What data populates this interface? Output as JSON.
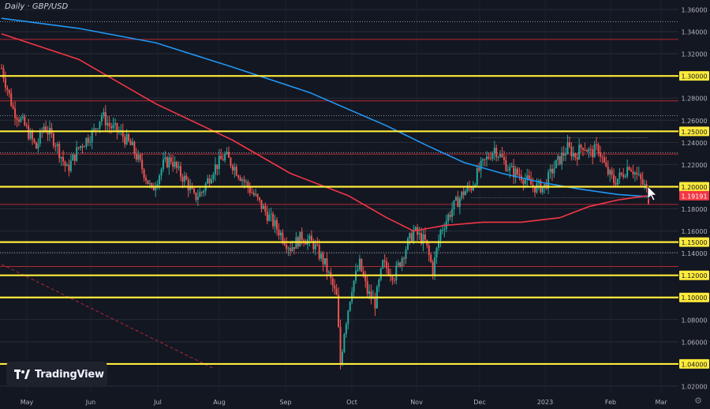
{
  "chart_title": "Daily · GBP/USD",
  "brand": "TradingView",
  "settings_icon": "gear-icon",
  "colors": {
    "background": "#131722",
    "grid": "#2a2e39",
    "up_candle": "#26a69a",
    "down_candle": "#ef5350",
    "sma_long": "#2196f3",
    "sma_short": "#f23645",
    "key_level": "#ffeb3b",
    "thin_level": "#d1d4dc",
    "red_level": "#b22833",
    "price_label_bg": "#f23645",
    "axis_text": "#b2b5be"
  },
  "chart_data": {
    "type": "candlestick",
    "symbol": "GBP/USD",
    "timeframe": "Daily",
    "ylim": [
      1.01,
      1.365
    ],
    "y_ticks": [
      "1.36000",
      "1.34000",
      "1.32000",
      "1.30000",
      "1.28000",
      "1.26000",
      "1.25000",
      "1.24000",
      "1.22000",
      "1.20000",
      "1.19191",
      "1.18000",
      "1.16000",
      "1.15000",
      "1.14000",
      "1.12000",
      "1.10000",
      "1.08000",
      "1.06000",
      "1.04000",
      "1.02000"
    ],
    "x_ticks": [
      "May",
      "Jun",
      "Jul",
      "Aug",
      "Sep",
      "Oct",
      "Nov",
      "Dec",
      "2023",
      "Feb",
      "Mar"
    ],
    "last_price": 1.19191,
    "key_levels": [
      1.3,
      1.25,
      1.2,
      1.15,
      1.12,
      1.1,
      1.04
    ],
    "thin_levels": [
      1.349,
      1.264,
      1.2305,
      1.1405
    ],
    "red_levels": [
      1.333,
      1.2775,
      1.2295,
      1.184,
      1.128
    ],
    "close_path": [
      [
        0,
        1.307
      ],
      [
        6,
        1.27
      ],
      [
        12,
        1.255
      ],
      [
        18,
        1.235
      ],
      [
        22,
        1.255
      ],
      [
        28,
        1.24
      ],
      [
        34,
        1.215
      ],
      [
        40,
        1.235
      ],
      [
        48,
        1.25
      ],
      [
        52,
        1.265
      ],
      [
        56,
        1.255
      ],
      [
        62,
        1.248
      ],
      [
        68,
        1.235
      ],
      [
        74,
        1.213
      ],
      [
        78,
        1.196
      ],
      [
        84,
        1.22
      ],
      [
        88,
        1.225
      ],
      [
        92,
        1.213
      ],
      [
        96,
        1.205
      ],
      [
        100,
        1.19
      ],
      [
        104,
        1.195
      ],
      [
        110,
        1.216
      ],
      [
        116,
        1.228
      ],
      [
        120,
        1.22
      ],
      [
        126,
        1.205
      ],
      [
        132,
        1.19
      ],
      [
        138,
        1.175
      ],
      [
        144,
        1.16
      ],
      [
        150,
        1.145
      ],
      [
        156,
        1.155
      ],
      [
        162,
        1.148
      ],
      [
        168,
        1.13
      ],
      [
        174,
        1.1
      ],
      [
        176,
        1.04
      ],
      [
        178,
        1.07
      ],
      [
        182,
        1.11
      ],
      [
        186,
        1.13
      ],
      [
        190,
        1.105
      ],
      [
        194,
        1.095
      ],
      [
        198,
        1.13
      ],
      [
        204,
        1.12
      ],
      [
        210,
        1.145
      ],
      [
        214,
        1.16
      ],
      [
        220,
        1.15
      ],
      [
        224,
        1.125
      ],
      [
        228,
        1.16
      ],
      [
        234,
        1.18
      ],
      [
        240,
        1.195
      ],
      [
        244,
        1.2
      ],
      [
        248,
        1.215
      ],
      [
        252,
        1.225
      ],
      [
        256,
        1.235
      ],
      [
        260,
        1.225
      ],
      [
        264,
        1.215
      ],
      [
        270,
        1.21
      ],
      [
        276,
        1.2
      ],
      [
        282,
        1.2
      ],
      [
        286,
        1.215
      ],
      [
        290,
        1.225
      ],
      [
        294,
        1.235
      ],
      [
        298,
        1.228
      ],
      [
        302,
        1.238
      ],
      [
        306,
        1.23
      ],
      [
        310,
        1.235
      ],
      [
        314,
        1.215
      ],
      [
        318,
        1.205
      ],
      [
        322,
        1.21
      ],
      [
        326,
        1.22
      ],
      [
        330,
        1.21
      ],
      [
        334,
        1.2
      ],
      [
        336,
        1.19
      ]
    ],
    "series": [
      {
        "name": "SMA long (blue)",
        "points": [
          [
            0,
            1.352
          ],
          [
            40,
            1.343
          ],
          [
            80,
            1.33
          ],
          [
            120,
            1.308
          ],
          [
            160,
            1.285
          ],
          [
            200,
            1.255
          ],
          [
            220,
            1.238
          ],
          [
            240,
            1.222
          ],
          [
            260,
            1.212
          ],
          [
            280,
            1.204
          ],
          [
            300,
            1.198
          ],
          [
            320,
            1.193
          ],
          [
            336,
            1.191
          ]
        ]
      },
      {
        "name": "SMA short (red)",
        "points": [
          [
            0,
            1.338
          ],
          [
            40,
            1.315
          ],
          [
            80,
            1.275
          ],
          [
            120,
            1.242
          ],
          [
            150,
            1.212
          ],
          [
            180,
            1.192
          ],
          [
            200,
            1.172
          ],
          [
            214,
            1.16
          ],
          [
            230,
            1.165
          ],
          [
            250,
            1.168
          ],
          [
            270,
            1.168
          ],
          [
            290,
            1.172
          ],
          [
            305,
            1.182
          ],
          [
            320,
            1.188
          ],
          [
            336,
            1.192
          ]
        ]
      }
    ],
    "annotations": {
      "dashed_trendline": [
        [
          0,
          1.13
        ],
        [
          110,
          1.036
        ]
      ],
      "range_box_top": [
        1.244,
        244,
        336
      ],
      "range_box_bottom": [
        1.19,
        244,
        336
      ]
    }
  }
}
